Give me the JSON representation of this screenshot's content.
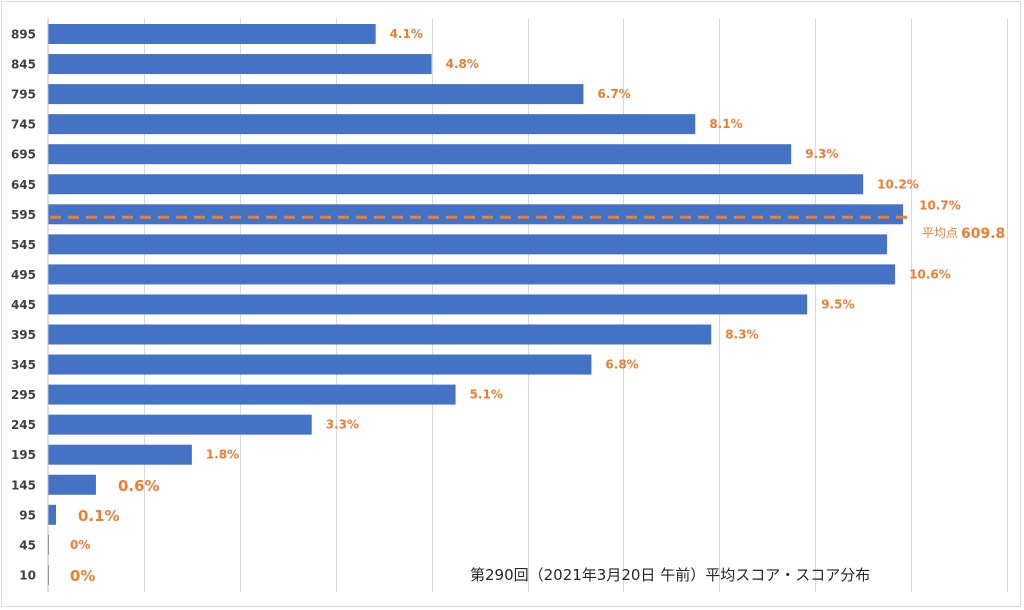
{
  "chart_data": {
    "type": "bar",
    "orientation": "horizontal",
    "title": "第290回（2021年3月20日 午前）平均スコア・スコア分布",
    "categories": [
      "895",
      "845",
      "795",
      "745",
      "695",
      "645",
      "595",
      "545",
      "495",
      "445",
      "395",
      "345",
      "295",
      "245",
      "195",
      "145",
      "95",
      "45",
      "10"
    ],
    "values": [
      4.1,
      4.8,
      6.7,
      8.1,
      9.3,
      10.2,
      10.7,
      10.5,
      10.6,
      9.5,
      8.3,
      6.8,
      5.1,
      3.3,
      1.8,
      0.6,
      0.1,
      0,
      0
    ],
    "data_labels": [
      "4.1%",
      "4.8%",
      "6.7%",
      "8.1%",
      "9.3%",
      "10.2%",
      "10.7%",
      "",
      "10.6%",
      "9.5%",
      "8.3%",
      "6.8%",
      "5.1%",
      "3.3%",
      "1.8%",
      "0.6%",
      "0.1%",
      "0%",
      "0%"
    ],
    "large_labels": [
      false,
      false,
      false,
      false,
      false,
      false,
      false,
      false,
      false,
      false,
      false,
      false,
      false,
      false,
      false,
      true,
      true,
      false,
      true
    ],
    "xlim": [
      0,
      12
    ],
    "grid_step": 1.2,
    "bar_color": "#4472c4",
    "label_color": "#ed7d31",
    "average": {
      "label": "平均点",
      "value_text": "609.8",
      "category_position": 6.1,
      "color": "#ed7d31"
    }
  }
}
